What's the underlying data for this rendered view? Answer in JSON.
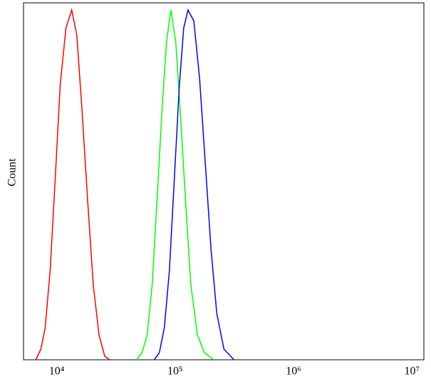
{
  "chart_data": {
    "type": "line",
    "ylabel": "Count",
    "xscale": "log",
    "xlim": [
      5250,
      12600000
    ],
    "ylim": [
      0,
      100
    ],
    "xticks": [
      {
        "value": 10000,
        "label": "10⁴"
      },
      {
        "value": 100000,
        "label": "10⁵"
      },
      {
        "value": 1000000,
        "label": "10⁶"
      },
      {
        "value": 10000000,
        "label": "10⁷"
      }
    ],
    "series": [
      {
        "color": "#ff0000",
        "x": [
          6670,
          7360,
          8000,
          8810,
          9730,
          10720,
          11990,
          13400,
          14790,
          16300,
          18230,
          20370,
          22800,
          25470,
          28070
        ],
        "values": [
          0,
          3,
          9,
          25,
          51,
          77,
          93,
          98,
          91,
          71,
          45,
          21,
          7,
          1,
          0
        ]
      },
      {
        "color": "#00ff00",
        "x": [
          47100,
          52600,
          58100,
          64000,
          70500,
          77800,
          84600,
          92000,
          101400,
          111700,
          123300,
          135800,
          154000,
          177000,
          212000
        ],
        "values": [
          0,
          2,
          7,
          21,
          45,
          71,
          89,
          98,
          89,
          67,
          43,
          21,
          7,
          2,
          0
        ]
      },
      {
        "color": "#0000ff",
        "x": [
          66700,
          73600,
          81100,
          89500,
          98600,
          108700,
          118200,
          128500,
          143800,
          160800,
          179800,
          201000,
          224800,
          258400,
          314200
        ],
        "values": [
          0,
          2,
          9,
          25,
          51,
          77,
          93,
          98,
          95,
          79,
          55,
          31,
          13,
          3,
          0
        ]
      }
    ]
  }
}
